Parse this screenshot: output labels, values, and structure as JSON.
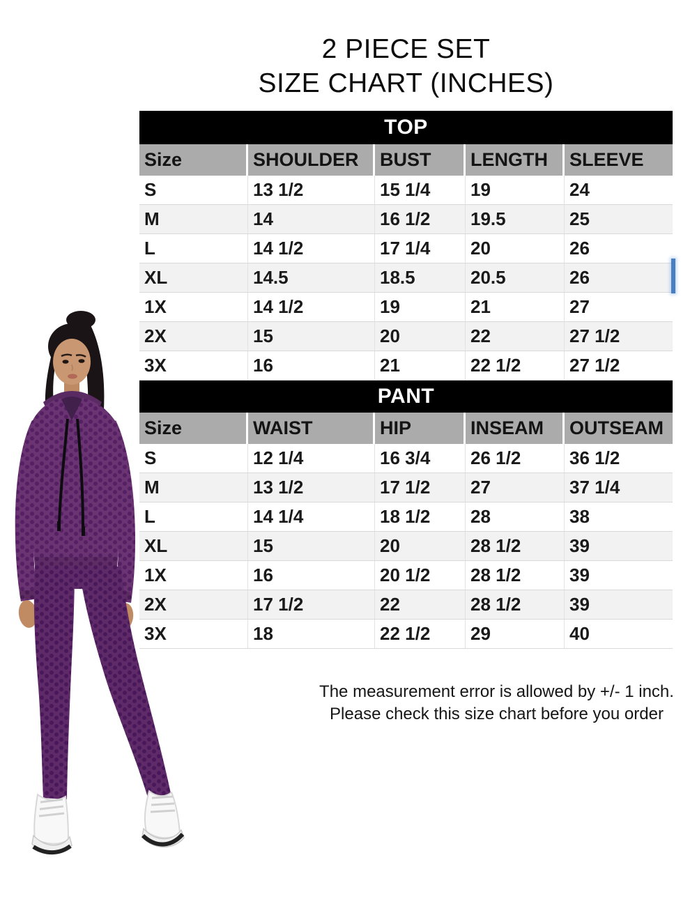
{
  "title": {
    "line1": "2 PIECE SET",
    "line2": "SIZE CHART (INCHES)"
  },
  "chart_data": [
    {
      "type": "table",
      "title": "TOP",
      "columns": [
        "Size",
        "SHOULDER",
        "BUST",
        "LENGTH",
        "SLEEVE"
      ],
      "rows": [
        [
          "S",
          "13 1/2",
          "15 1/4",
          "19",
          "24"
        ],
        [
          "M",
          "14",
          "16 1/2",
          "19.5",
          "25"
        ],
        [
          "L",
          "14 1/2",
          "17 1/4",
          "20",
          "26"
        ],
        [
          "XL",
          "14.5",
          "18.5",
          "20.5",
          "26"
        ],
        [
          "1X",
          "14 1/2",
          "19",
          "21",
          "27"
        ],
        [
          "2X",
          "15",
          "20",
          "22",
          "27 1/2"
        ],
        [
          "3X",
          "16",
          "21",
          "22 1/2",
          "27 1/2"
        ]
      ]
    },
    {
      "type": "table",
      "title": "PANT",
      "columns": [
        "Size",
        "WAIST",
        "HIP",
        "INSEAM",
        "OUTSEAM"
      ],
      "rows": [
        [
          "S",
          "12 1/4",
          "16 3/4",
          "26 1/2",
          "36 1/2"
        ],
        [
          "M",
          "13 1/2",
          "17 1/2",
          "27",
          "37 1/4"
        ],
        [
          "L",
          "14 1/4",
          "18 1/2",
          "28",
          "38"
        ],
        [
          "XL",
          "15",
          "20",
          "28 1/2",
          "39"
        ],
        [
          "1X",
          "16",
          "20 1/2",
          "28 1/2",
          "39"
        ],
        [
          "2X",
          "17 1/2",
          "22",
          "28 1/2",
          "39"
        ],
        [
          "3X",
          "18",
          "22 1/2",
          "29",
          "40"
        ]
      ]
    }
  ],
  "footer": {
    "line1": "The measurement error is allowed by +/- 1 inch.",
    "line2": "Please check this size chart before you order"
  },
  "colors": {
    "section_header_bg": "#000000",
    "section_header_text": "#ffffff",
    "column_header_bg": "#ababab",
    "alt_row_bg": "#f2f2f2",
    "row_border": "#d9d9d9",
    "cursor_artifact_blue": "#4a7ec2",
    "outfit_purple": "#6a3372",
    "outfit_purple_dark": "#552063"
  }
}
